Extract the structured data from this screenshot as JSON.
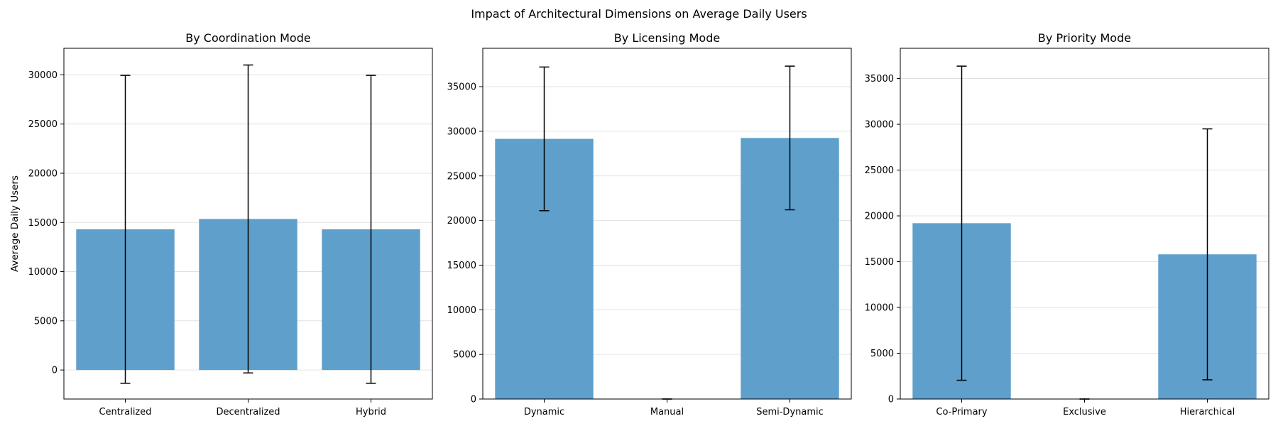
{
  "figure": {
    "title": "Impact of Architectural Dimensions on Average Daily Users"
  },
  "chart_data": [
    {
      "type": "bar",
      "title": "By Coordination Mode",
      "ylabel": "Average Daily Users",
      "xlabel": "",
      "categories": [
        "Centralized",
        "Decentralized",
        "Hybrid"
      ],
      "values": [
        14300,
        15350,
        14300
      ],
      "errors": [
        15650,
        15650,
        15650
      ],
      "ylim": [
        -2950,
        32700
      ],
      "yticks": [
        0,
        5000,
        10000,
        15000,
        20000,
        25000,
        30000
      ],
      "grid": "y",
      "bar_color": "#5f9fcb"
    },
    {
      "type": "bar",
      "title": "By Licensing Mode",
      "ylabel": "",
      "xlabel": "",
      "categories": [
        "Dynamic",
        "Manual",
        "Semi-Dynamic"
      ],
      "values": [
        29150,
        0,
        29250
      ],
      "errors": [
        8050,
        0,
        8050
      ],
      "ylim": [
        0,
        39300
      ],
      "yticks": [
        0,
        5000,
        10000,
        15000,
        20000,
        25000,
        30000,
        35000
      ],
      "grid": "y",
      "bar_color": "#5f9fcb"
    },
    {
      "type": "bar",
      "title": "By Priority Mode",
      "ylabel": "",
      "xlabel": "",
      "categories": [
        "Co-Primary",
        "Exclusive",
        "Hierarchical"
      ],
      "values": [
        19200,
        0,
        15800
      ],
      "errors": [
        17150,
        0,
        13700
      ],
      "ylim": [
        0,
        38300
      ],
      "yticks": [
        0,
        5000,
        10000,
        15000,
        20000,
        25000,
        30000,
        35000
      ],
      "grid": "y",
      "bar_color": "#5f9fcb"
    }
  ]
}
